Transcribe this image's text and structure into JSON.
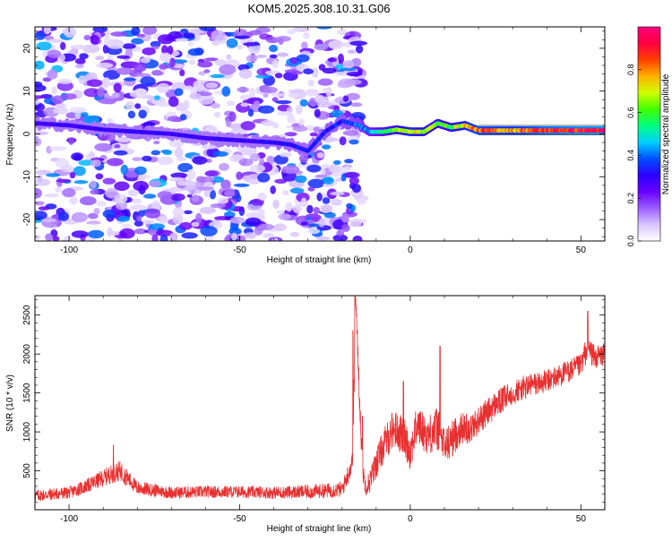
{
  "figure": {
    "title": "KOM5.2025.308.10.31.G06"
  },
  "chart_data": [
    {
      "type": "heatmap",
      "xlabel": "Height of straight line (km)",
      "ylabel": "Frequency (Hz)",
      "xlim": [
        -110,
        57
      ],
      "ylim": [
        -25,
        25
      ],
      "xticks": [
        -100,
        -50,
        0,
        50
      ],
      "xtick_labels": [
        "-100",
        "-50",
        "0",
        "50"
      ],
      "yticks": [
        -20,
        -10,
        0,
        10,
        20
      ],
      "ytick_labels": [
        "-20",
        "-10",
        "0",
        "10",
        "20"
      ],
      "colorbar": {
        "label": "Normalized spectral amplitude",
        "range": [
          0,
          1
        ],
        "ticks": [
          0.0,
          0.2,
          0.4,
          0.6,
          0.8
        ],
        "tick_labels": [
          "0.0",
          "0.2",
          "0.4",
          "0.6",
          "0.8"
        ],
        "colors": [
          "#ffffff",
          "#d9c6ff",
          "#9a5cff",
          "#6a00ff",
          "#2b00ff",
          "#0050ff",
          "#00d0ff",
          "#00ff80",
          "#40ff00",
          "#d0ff00",
          "#ffb000",
          "#ff4000",
          "#ff0040",
          "#ff0080"
        ]
      },
      "ridge": {
        "description_values_hz_at_km": [
          [
            -110,
            2.5
          ],
          [
            -100,
            2.0
          ],
          [
            -90,
            1.0
          ],
          [
            -80,
            0.5
          ],
          [
            -70,
            0.0
          ],
          [
            -60,
            -1.0
          ],
          [
            -50,
            -1.5
          ],
          [
            -40,
            -2.0
          ],
          [
            -35,
            -2.5
          ],
          [
            -30,
            -4.0
          ],
          [
            -25,
            0.5
          ],
          [
            -20,
            3.0
          ],
          [
            -15,
            2.0
          ],
          [
            -12,
            0.5
          ],
          [
            -8,
            0.5
          ],
          [
            -4,
            1.0
          ],
          [
            0,
            0.5
          ],
          [
            4,
            0.5
          ],
          [
            8,
            2.5
          ],
          [
            12,
            1.5
          ],
          [
            16,
            2.0
          ],
          [
            20,
            0.8
          ],
          [
            30,
            0.8
          ],
          [
            40,
            0.8
          ],
          [
            50,
            0.8
          ],
          [
            57,
            0.8
          ]
        ],
        "amplitude_at_km": [
          [
            -110,
            0.3
          ],
          [
            -50,
            0.3
          ],
          [
            -20,
            0.35
          ],
          [
            -15,
            0.4
          ],
          [
            -10,
            0.5
          ],
          [
            0,
            0.75
          ],
          [
            10,
            0.6
          ],
          [
            20,
            0.85
          ],
          [
            30,
            0.8
          ],
          [
            40,
            0.9
          ],
          [
            57,
            0.95
          ]
        ]
      },
      "noise": {
        "x_range": [
          -110,
          -14
        ],
        "y_range": [
          -25,
          25
        ],
        "amplitude_range": [
          0.05,
          0.45
        ]
      }
    },
    {
      "type": "line",
      "xlabel": "Height of straight line (km)",
      "ylabel": "SNR (10 * v/v)",
      "xlim": [
        -110,
        57
      ],
      "ylim": [
        0,
        2750
      ],
      "xticks": [
        -100,
        -50,
        0,
        50
      ],
      "xtick_labels": [
        "-100",
        "-50",
        "0",
        "50"
      ],
      "yticks": [
        500,
        1000,
        1500,
        2000,
        2500
      ],
      "ytick_labels": [
        "500",
        "1000",
        "1500",
        "2000",
        "2500"
      ],
      "series": [
        {
          "name": "SNR",
          "color": "#e83030",
          "trend_x": [
            -110,
            -100,
            -95,
            -88,
            -85,
            -80,
            -70,
            -60,
            -50,
            -40,
            -30,
            -20,
            -17,
            -16.5,
            -16,
            -15,
            -14,
            -13,
            -12,
            -10,
            -8,
            -5,
            -2,
            0,
            2,
            5,
            8,
            10,
            12,
            15,
            18,
            20,
            25,
            30,
            35,
            40,
            45,
            50,
            52,
            54,
            57
          ],
          "trend_y": [
            180,
            220,
            300,
            450,
            500,
            280,
            220,
            230,
            230,
            220,
            230,
            260,
            600,
            1500,
            2700,
            1600,
            500,
            300,
            350,
            600,
            800,
            1050,
            950,
            750,
            1100,
            950,
            1050,
            800,
            900,
            1050,
            1050,
            1150,
            1350,
            1500,
            1600,
            1650,
            1750,
            1850,
            2100,
            1950,
            2000
          ],
          "noise_amplitude": [
            80,
            80,
            90,
            120,
            130,
            90,
            80,
            80,
            80,
            80,
            90,
            100,
            150,
            300,
            150,
            200,
            150,
            120,
            150,
            200,
            220,
            250,
            250,
            250,
            250,
            250,
            300,
            250,
            250,
            200,
            200,
            180,
            180,
            160,
            160,
            150,
            150,
            150,
            180,
            150,
            150
          ],
          "peaks": [
            [
              -87,
              830
            ],
            [
              -16.2,
              2750
            ],
            [
              -16.8,
              2300
            ],
            [
              8.7,
              2100
            ],
            [
              52,
              2550
            ],
            [
              -2,
              1650
            ],
            [
              -14,
              1200
            ]
          ]
        }
      ]
    }
  ]
}
